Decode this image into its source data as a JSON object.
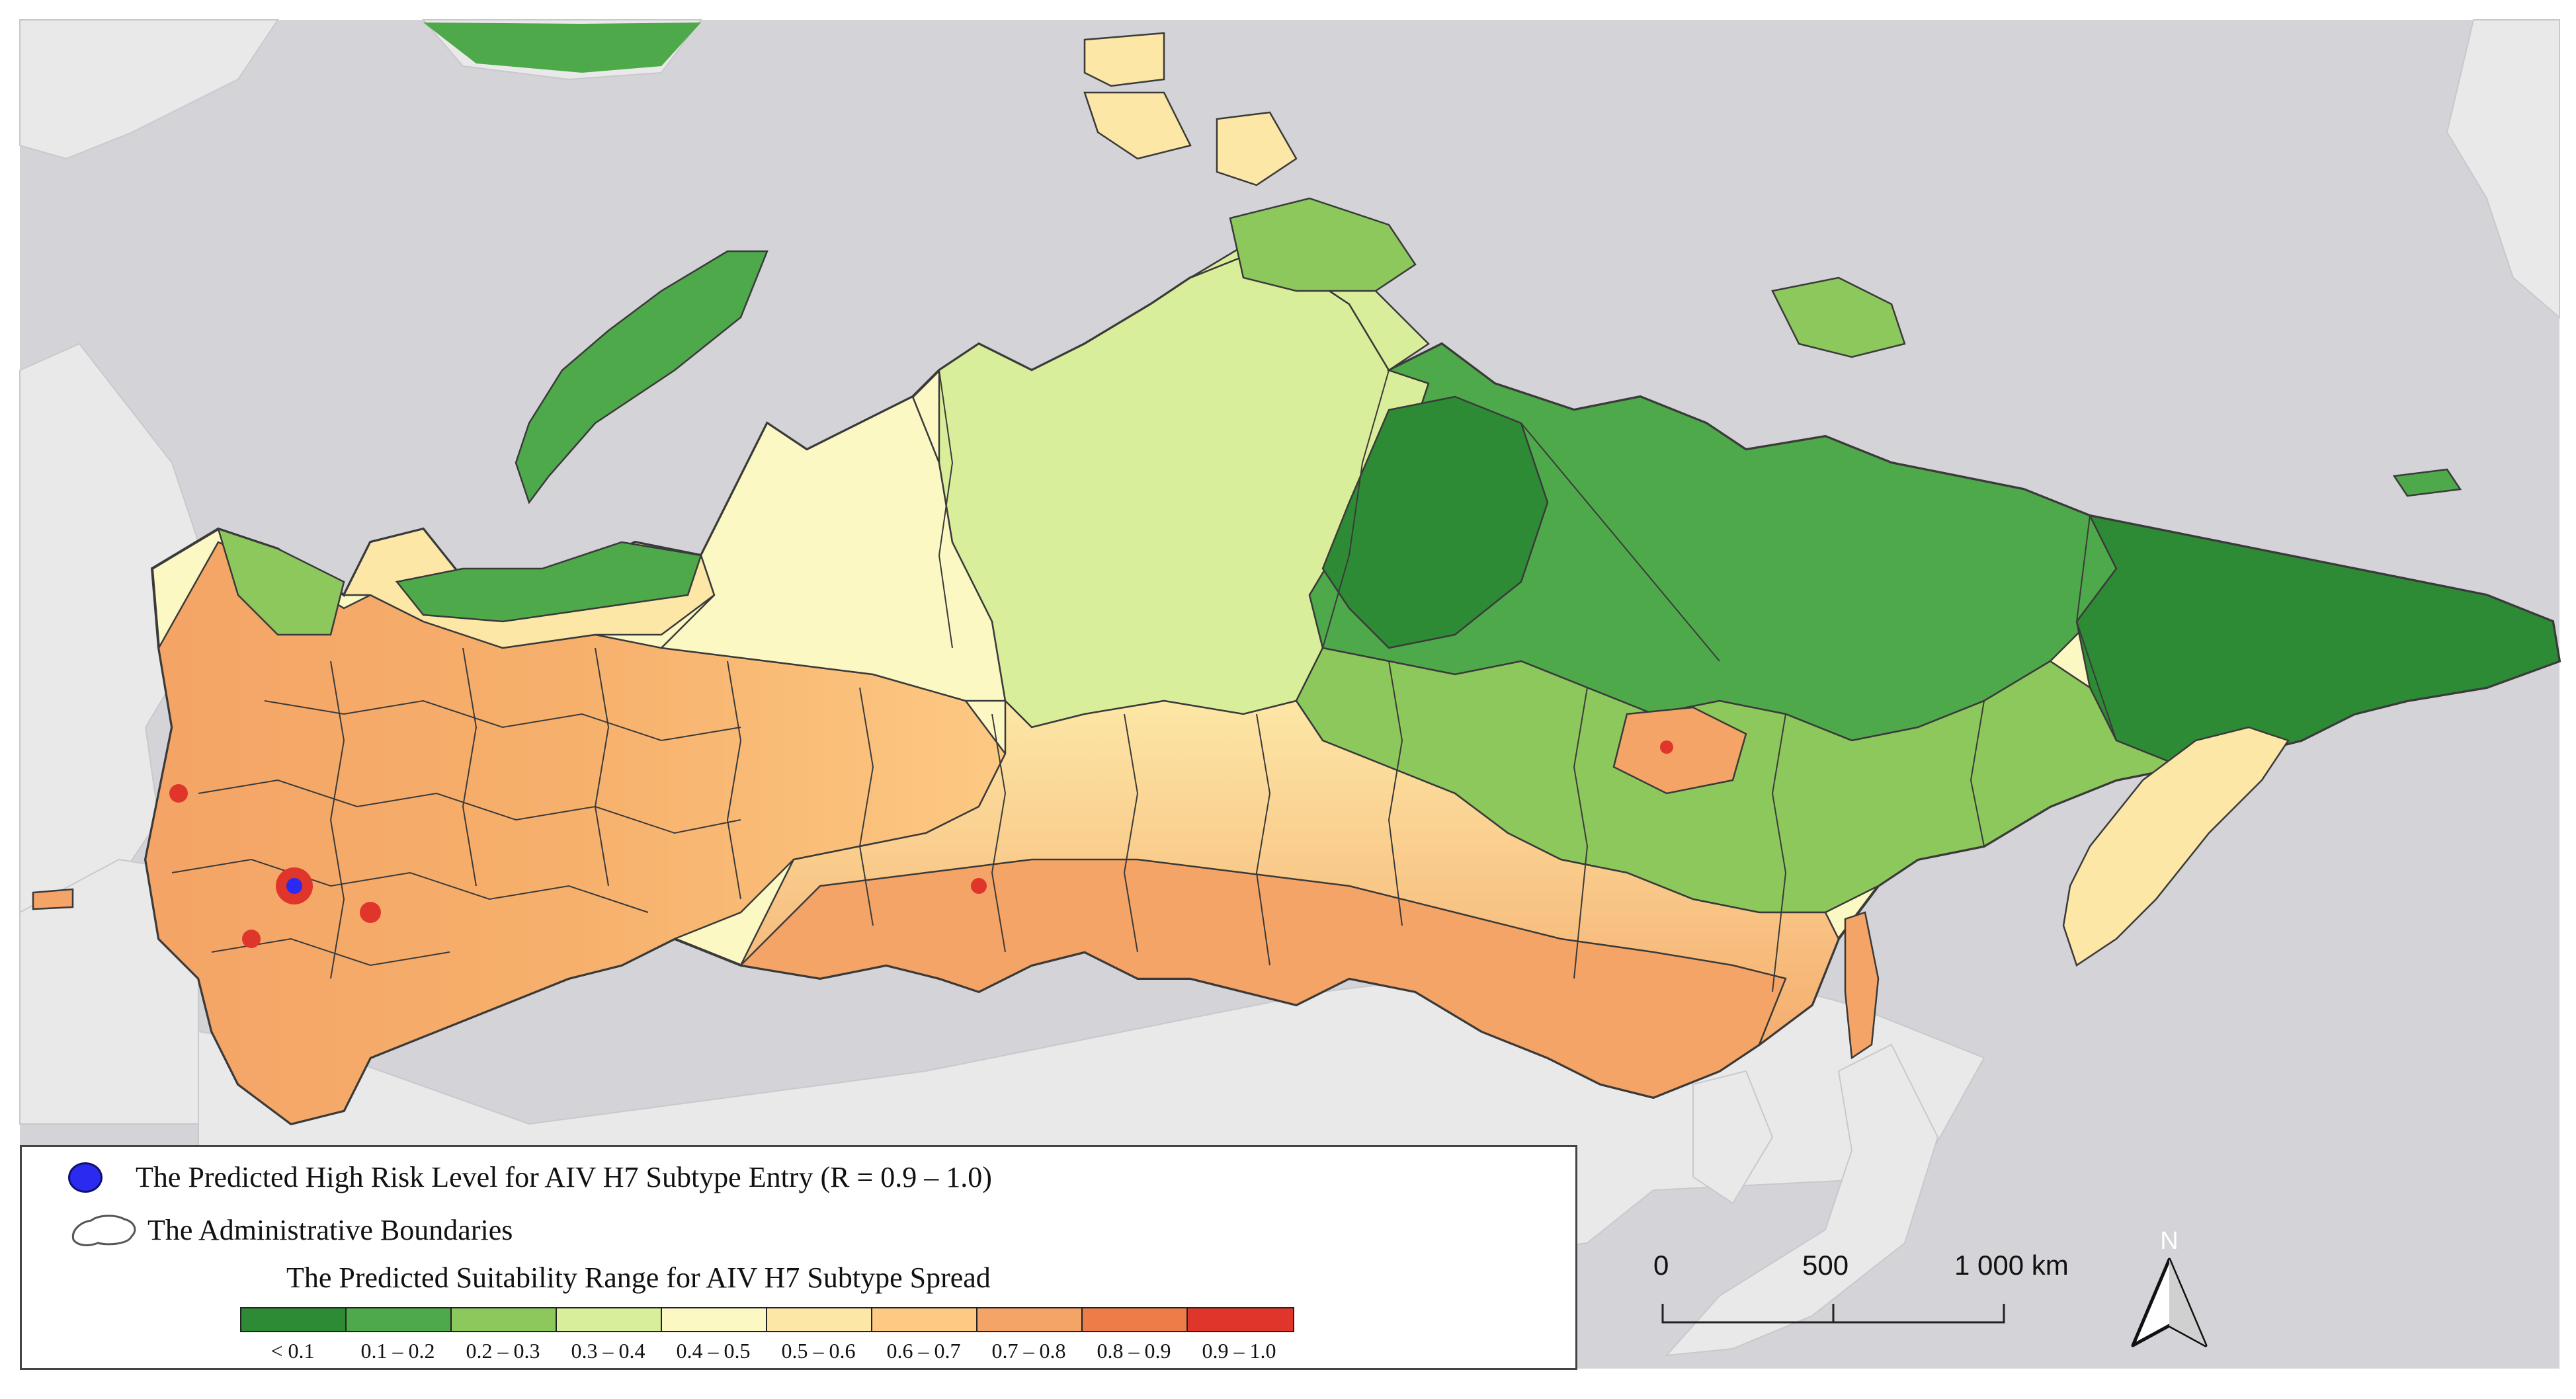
{
  "map": {
    "colors": {
      "sea": "#d3d3d8",
      "land_other": "#e9e9ea",
      "boundary": "#3a3a3a",
      "risk_dot": "#2a2af0"
    }
  },
  "legend": {
    "high_risk_label": "The Predicted High Risk Level for AIV H7 Subtype Entry (R = 0.9 – 1.0)",
    "boundaries_label": "The Administrative Boundaries",
    "ramp_title": "The Predicted Suitability Range for AIV H7 Subtype Spread",
    "classes": [
      {
        "label": "< 0.1",
        "color": "#2e8b35"
      },
      {
        "label": "0.1 – 0.2",
        "color": "#4ea94a"
      },
      {
        "label": "0.2 – 0.3",
        "color": "#8cc85c"
      },
      {
        "label": "0.3 – 0.4",
        "color": "#d9ee9a"
      },
      {
        "label": "0.4 – 0.5",
        "color": "#fbf8c4"
      },
      {
        "label": "0.5 – 0.6",
        "color": "#fde7a6"
      },
      {
        "label": "0.6 – 0.7",
        "color": "#fdc983"
      },
      {
        "label": "0.7 – 0.8",
        "color": "#f4a466"
      },
      {
        "label": "0.8 – 0.9",
        "color": "#ee7c48"
      },
      {
        "label": "0.9 – 1.0",
        "color": "#e0352a"
      }
    ]
  },
  "scale_bar": {
    "labels": [
      "0",
      "500",
      "1 000 km"
    ]
  },
  "north_arrow": {
    "label": "N"
  }
}
